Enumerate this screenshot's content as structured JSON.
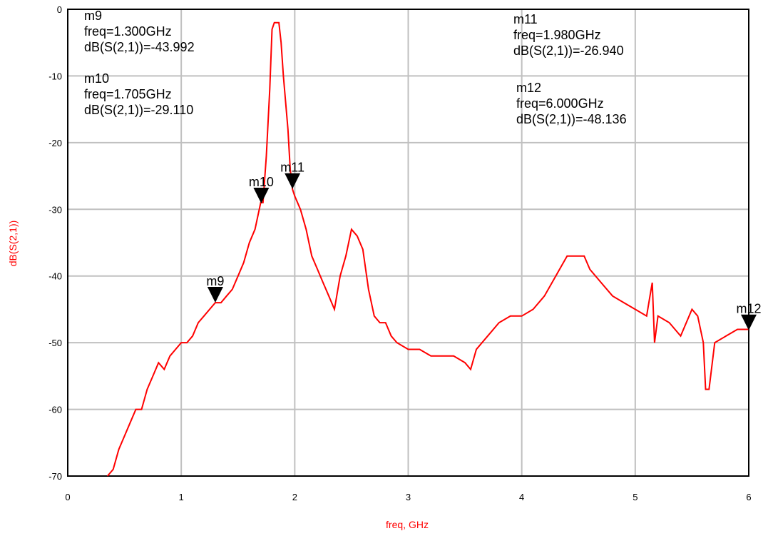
{
  "chart_data": {
    "type": "line",
    "title": "",
    "xlabel": "freq, GHz",
    "ylabel": "dB(S(2,1))",
    "xlim": [
      0,
      6
    ],
    "ylim": [
      -70,
      0
    ],
    "grid": true,
    "line_color": "#ff0000",
    "x_ticks": [
      "0",
      "1",
      "2",
      "3",
      "4",
      "5",
      "6"
    ],
    "y_ticks": [
      "0",
      "-10",
      "-20",
      "-30",
      "-40",
      "-50",
      "-60",
      "-70"
    ],
    "series": [
      {
        "x": [
          0.35,
          0.4,
          0.45,
          0.5,
          0.55,
          0.6,
          0.65,
          0.7,
          0.75,
          0.8,
          0.85,
          0.9,
          0.95,
          1.0,
          1.05,
          1.1,
          1.15,
          1.2,
          1.25,
          1.3,
          1.35,
          1.4,
          1.45,
          1.5,
          1.55,
          1.6,
          1.65,
          1.7,
          1.72,
          1.75,
          1.78,
          1.8,
          1.82,
          1.84,
          1.86,
          1.88,
          1.9,
          1.92,
          1.94,
          1.96,
          1.98,
          2.0,
          2.05,
          2.1,
          2.15,
          2.2,
          2.25,
          2.3,
          2.35,
          2.4,
          2.45,
          2.5,
          2.55,
          2.6,
          2.65,
          2.7,
          2.75,
          2.8,
          2.85,
          2.9,
          3.0,
          3.1,
          3.2,
          3.3,
          3.4,
          3.5,
          3.55,
          3.6,
          3.7,
          3.8,
          3.9,
          4.0,
          4.1,
          4.2,
          4.3,
          4.4,
          4.5,
          4.55,
          4.6,
          4.7,
          4.8,
          4.9,
          5.0,
          5.1,
          5.13,
          5.15,
          5.17,
          5.2,
          5.3,
          5.4,
          5.5,
          5.55,
          5.6,
          5.62,
          5.65,
          5.7,
          5.8,
          5.9,
          6.0
        ],
        "y": [
          -70,
          -69,
          -66,
          -64,
          -62,
          -60,
          -60,
          -57,
          -55,
          -53,
          -54,
          -52,
          -51,
          -50,
          -50,
          -49,
          -47,
          -46,
          -45,
          -44,
          -44,
          -43,
          -42,
          -40,
          -38,
          -35,
          -33,
          -29,
          -29,
          -22,
          -12,
          -3,
          -2,
          -2,
          -2,
          -5,
          -10,
          -14,
          -18,
          -24,
          -27,
          -28,
          -30,
          -33,
          -37,
          -39,
          -41,
          -43,
          -45,
          -40,
          -37,
          -33,
          -34,
          -36,
          -42,
          -46,
          -47,
          -47,
          -49,
          -50,
          -51,
          -51,
          -52,
          -52,
          -52,
          -53,
          -54,
          -51,
          -49,
          -47,
          -46,
          -46,
          -45,
          -43,
          -40,
          -37,
          -37,
          -37,
          -39,
          -41,
          -43,
          -44,
          -45,
          -46,
          -43,
          -41,
          -50,
          -46,
          -47,
          -49,
          -45,
          -46,
          -50,
          -57,
          -57,
          -50,
          -49,
          -48,
          -48
        ]
      }
    ],
    "markers": [
      {
        "name": "m9",
        "freq": 1.3,
        "value": -43.992,
        "label": "freq=1.300GHz",
        "value_label": "dB(S(2,1))=-43.992"
      },
      {
        "name": "m10",
        "freq": 1.705,
        "value": -29.11,
        "label": "freq=1.705GHz",
        "value_label": "dB(S(2,1))=-29.110"
      },
      {
        "name": "m11",
        "freq": 1.98,
        "value": -26.94,
        "label": "freq=1.980GHz",
        "value_label": "dB(S(2,1))=-26.940"
      },
      {
        "name": "m12",
        "freq": 6.0,
        "value": -48.136,
        "label": "freq=6.000GHz",
        "value_label": "dB(S(2,1))=-48.136"
      }
    ]
  }
}
